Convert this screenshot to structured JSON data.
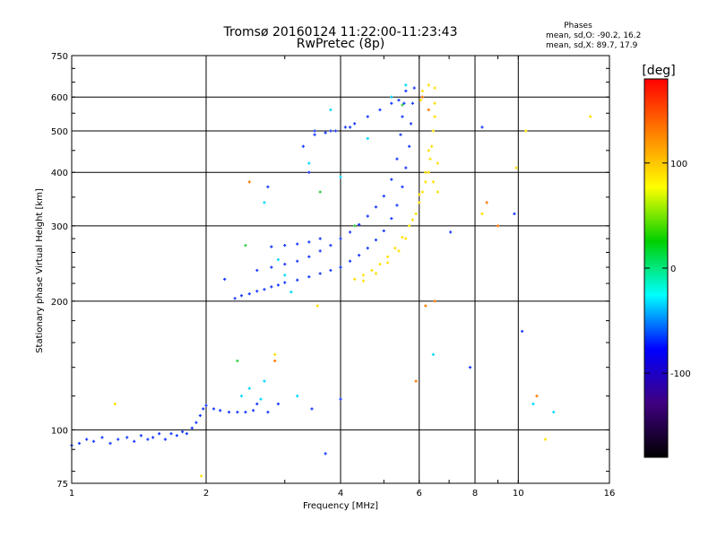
{
  "chart_data": {
    "type": "scatter",
    "title": "Tromsø 20160124 11:22:00-11:23:43",
    "subtitle": "RwPretec (8p)",
    "xlabel": "Frequency [MHz]",
    "ylabel": "Stationary phase Virtual Height [km]",
    "x_scale": "log",
    "y_scale": "log",
    "xlim": [
      1,
      16
    ],
    "ylim": [
      75,
      750
    ],
    "x_ticks": [
      1,
      2,
      4,
      6,
      8,
      10,
      16
    ],
    "x_tick_labels": [
      "1",
      "2",
      "4",
      "6",
      "8",
      "10",
      "16"
    ],
    "y_ticks": [
      75,
      100,
      200,
      300,
      400,
      500,
      600,
      750
    ],
    "y_tick_labels": [
      "75",
      "100",
      "200",
      "300",
      "400",
      "500",
      "600",
      "750"
    ],
    "grid": true,
    "phase_info": {
      "heading": "Phases",
      "line_o": "mean, sd,O:  -90.2, 16.2",
      "line_x": "mean, sd,X:  89.7, 17.9"
    },
    "colorbar": {
      "label": "[deg]",
      "range": [
        -180,
        180
      ],
      "ticks": [
        100,
        0,
        -100
      ],
      "tick_labels": [
        "100",
        "0",
        "-100"
      ],
      "colors": [
        "#ff0000",
        "#ff8000",
        "#ffff00",
        "#00d000",
        "#00ffff",
        "#0000ff",
        "#400080",
        "#000000"
      ]
    },
    "series": [
      {
        "color": "#1a3cff",
        "phase": -90,
        "points": [
          [
            1.0,
            92
          ],
          [
            1.04,
            93
          ],
          [
            1.08,
            95
          ],
          [
            1.12,
            94
          ],
          [
            1.17,
            96
          ],
          [
            1.22,
            93
          ],
          [
            1.27,
            95
          ],
          [
            1.33,
            96
          ],
          [
            1.38,
            94
          ],
          [
            1.43,
            97
          ],
          [
            1.48,
            95
          ],
          [
            1.52,
            96
          ],
          [
            1.57,
            98
          ],
          [
            1.62,
            95
          ],
          [
            1.67,
            98
          ],
          [
            1.72,
            97
          ],
          [
            1.77,
            99
          ],
          [
            1.81,
            98
          ],
          [
            1.86,
            101
          ],
          [
            1.9,
            104
          ],
          [
            1.94,
            108
          ],
          [
            1.97,
            112
          ],
          [
            2.0,
            114
          ],
          [
            2.08,
            112
          ],
          [
            2.15,
            111
          ],
          [
            2.25,
            110
          ],
          [
            2.35,
            110
          ],
          [
            2.45,
            110
          ],
          [
            2.55,
            111
          ],
          [
            2.6,
            115
          ],
          [
            2.32,
            203
          ],
          [
            2.4,
            206
          ],
          [
            2.5,
            208
          ],
          [
            2.6,
            211
          ],
          [
            2.7,
            213
          ],
          [
            2.8,
            216
          ],
          [
            2.9,
            218
          ],
          [
            3.0,
            221
          ],
          [
            3.2,
            224
          ],
          [
            3.4,
            228
          ],
          [
            3.6,
            232
          ],
          [
            3.8,
            236
          ],
          [
            4.0,
            240
          ],
          [
            4.2,
            248
          ],
          [
            4.4,
            256
          ],
          [
            4.6,
            266
          ],
          [
            4.8,
            278
          ],
          [
            5.0,
            292
          ],
          [
            5.2,
            312
          ],
          [
            5.35,
            335
          ],
          [
            5.5,
            370
          ],
          [
            5.6,
            410
          ],
          [
            5.7,
            460
          ],
          [
            5.75,
            520
          ],
          [
            5.8,
            580
          ],
          [
            5.85,
            630
          ],
          [
            2.6,
            236
          ],
          [
            2.8,
            240
          ],
          [
            3.0,
            244
          ],
          [
            3.2,
            248
          ],
          [
            3.4,
            254
          ],
          [
            3.6,
            262
          ],
          [
            3.8,
            270
          ],
          [
            4.0,
            280
          ],
          [
            4.2,
            290
          ],
          [
            4.4,
            302
          ],
          [
            4.6,
            316
          ],
          [
            4.8,
            332
          ],
          [
            5.0,
            352
          ],
          [
            5.2,
            385
          ],
          [
            5.35,
            430
          ],
          [
            5.45,
            490
          ],
          [
            5.5,
            540
          ],
          [
            5.55,
            580
          ],
          [
            5.6,
            620
          ],
          [
            2.8,
            268
          ],
          [
            3.0,
            270
          ],
          [
            3.2,
            272
          ],
          [
            3.4,
            275
          ],
          [
            3.6,
            280
          ],
          [
            3.5,
            490
          ],
          [
            3.7,
            495
          ],
          [
            3.9,
            500
          ],
          [
            4.1,
            510
          ],
          [
            4.3,
            520
          ],
          [
            4.6,
            540
          ],
          [
            4.9,
            560
          ],
          [
            5.2,
            580
          ],
          [
            5.4,
            590
          ],
          [
            3.3,
            460
          ],
          [
            3.4,
            400
          ],
          [
            3.5,
            500
          ],
          [
            3.8,
            500
          ],
          [
            4.2,
            510
          ],
          [
            4.0,
            118
          ],
          [
            3.45,
            112
          ],
          [
            2.2,
            225
          ],
          [
            2.75,
            370
          ],
          [
            2.9,
            115
          ],
          [
            2.75,
            110
          ],
          [
            7.05,
            290
          ],
          [
            8.3,
            510
          ],
          [
            9.8,
            320
          ],
          [
            7.8,
            140
          ],
          [
            10.2,
            170
          ],
          [
            3.7,
            88
          ]
        ]
      },
      {
        "color": "#ffe000",
        "phase": 90,
        "points": [
          [
            4.3,
            225
          ],
          [
            4.5,
            230
          ],
          [
            4.7,
            236
          ],
          [
            4.9,
            244
          ],
          [
            5.1,
            254
          ],
          [
            5.3,
            266
          ],
          [
            5.5,
            282
          ],
          [
            5.7,
            300
          ],
          [
            5.9,
            320
          ],
          [
            6.0,
            340
          ],
          [
            6.1,
            360
          ],
          [
            6.2,
            380
          ],
          [
            6.3,
            400
          ],
          [
            6.35,
            430
          ],
          [
            6.4,
            460
          ],
          [
            6.45,
            500
          ],
          [
            6.5,
            540
          ],
          [
            6.5,
            580
          ],
          [
            6.5,
            630
          ],
          [
            4.5,
            223
          ],
          [
            4.8,
            232
          ],
          [
            5.1,
            246
          ],
          [
            5.4,
            262
          ],
          [
            5.6,
            280
          ],
          [
            5.8,
            310
          ],
          [
            6.0,
            355
          ],
          [
            6.2,
            400
          ],
          [
            6.3,
            450
          ],
          [
            6.45,
            380
          ],
          [
            6.6,
            360
          ],
          [
            6.6,
            420
          ],
          [
            6.05,
            590
          ],
          [
            6.1,
            620
          ],
          [
            6.3,
            640
          ],
          [
            1.25,
            115
          ],
          [
            2.85,
            150
          ],
          [
            3.55,
            195
          ],
          [
            8.3,
            320
          ],
          [
            9.9,
            410
          ],
          [
            10.4,
            500
          ],
          [
            11.5,
            95
          ],
          [
            14.5,
            540
          ],
          [
            1.95,
            78
          ]
        ]
      },
      {
        "color": "#ff7a00",
        "phase": 130,
        "points": [
          [
            6.2,
            195
          ],
          [
            6.1,
            600
          ],
          [
            6.3,
            560
          ],
          [
            8.5,
            340
          ],
          [
            9.0,
            300
          ],
          [
            2.5,
            380
          ],
          [
            2.85,
            145
          ],
          [
            5.9,
            130
          ],
          [
            6.5,
            200
          ],
          [
            11.0,
            120
          ]
        ]
      },
      {
        "color": "#00d8ff",
        "phase": -20,
        "points": [
          [
            2.7,
            340
          ],
          [
            2.9,
            250
          ],
          [
            3.0,
            230
          ],
          [
            3.1,
            210
          ],
          [
            2.4,
            120
          ],
          [
            2.5,
            125
          ],
          [
            2.7,
            130
          ],
          [
            2.65,
            118
          ],
          [
            3.2,
            120
          ],
          [
            3.4,
            420
          ],
          [
            4.0,
            390
          ],
          [
            5.6,
            640
          ],
          [
            6.45,
            150
          ],
          [
            10.8,
            115
          ],
          [
            12.0,
            110
          ],
          [
            5.2,
            600
          ],
          [
            4.6,
            480
          ],
          [
            3.8,
            560
          ]
        ]
      },
      {
        "color": "#30d040",
        "phase": 20,
        "points": [
          [
            2.45,
            270
          ],
          [
            3.6,
            360
          ],
          [
            2.35,
            145
          ],
          [
            5.5,
            575
          ],
          [
            4.3,
            300
          ]
        ]
      }
    ]
  }
}
